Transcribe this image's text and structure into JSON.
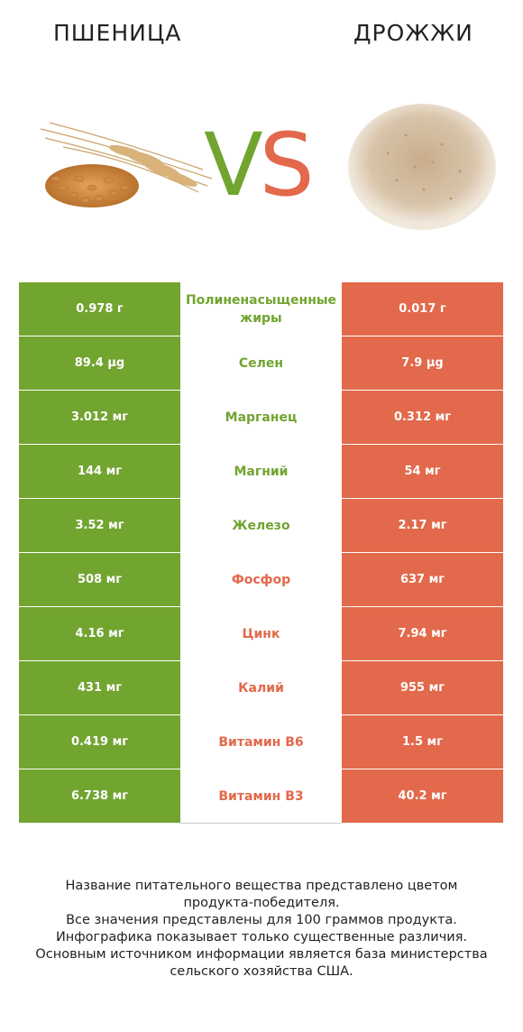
{
  "header": {
    "left_title": "ПШЕНИЦА",
    "right_title": "ДРОЖЖИ",
    "vs_v": "V",
    "vs_s": "S"
  },
  "colors": {
    "left": "#72a430",
    "right": "#e2694b"
  },
  "rows": [
    {
      "left": "0.978 г",
      "name": "Полиненасыщенные жиры",
      "right": "0.017 г",
      "winner": "left"
    },
    {
      "left": "89.4 µg",
      "name": "Селен",
      "right": "7.9 µg",
      "winner": "left"
    },
    {
      "left": "3.012 мг",
      "name": "Марганец",
      "right": "0.312 мг",
      "winner": "left"
    },
    {
      "left": "144 мг",
      "name": "Магний",
      "right": "54 мг",
      "winner": "left"
    },
    {
      "left": "3.52 мг",
      "name": "Железо",
      "right": "2.17 мг",
      "winner": "left"
    },
    {
      "left": "508 мг",
      "name": "Фосфор",
      "right": "637 мг",
      "winner": "right"
    },
    {
      "left": "4.16 мг",
      "name": "Цинк",
      "right": "7.94 мг",
      "winner": "right"
    },
    {
      "left": "431 мг",
      "name": "Калий",
      "right": "955 мг",
      "winner": "right"
    },
    {
      "left": "0.419 мг",
      "name": "Витамин B6",
      "right": "1.5 мг",
      "winner": "right"
    },
    {
      "left": "6.738 мг",
      "name": "Витамин B3",
      "right": "40.2 мг",
      "winner": "right"
    }
  ],
  "footnote": [
    "Название питательного вещества представлено цветом",
    "продукта-победителя.",
    "Все значения представлены для 100 граммов продукта.",
    "Инфографика показывает только существенные различия.",
    "Основным источником информации является база министерства",
    "сельского хозяйства США."
  ]
}
